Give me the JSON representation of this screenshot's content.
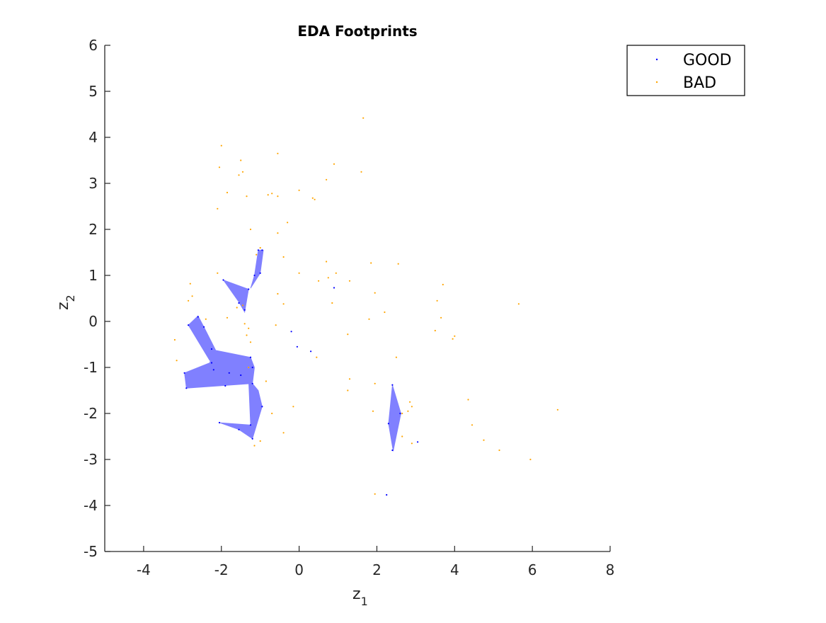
{
  "chart_data": {
    "type": "scatter",
    "title": "EDA Footprints",
    "xlabel": "z",
    "xlabel_sub": "1",
    "ylabel": "z",
    "ylabel_sub": "2",
    "xlim": [
      -5,
      8
    ],
    "ylim": [
      -5,
      6
    ],
    "xticks": [
      -4,
      -2,
      0,
      2,
      4,
      6,
      8
    ],
    "yticks": [
      -5,
      -4,
      -3,
      -2,
      -1,
      0,
      1,
      2,
      3,
      4,
      5,
      6
    ],
    "legend_position": "top-right",
    "grid": false,
    "series": [
      {
        "name": "GOOD",
        "color": "#0000ff",
        "points": [
          [
            -2.6,
            0.1
          ],
          [
            -2.85,
            -0.08
          ],
          [
            -2.45,
            -0.12
          ],
          [
            -2.25,
            -0.6
          ],
          [
            -2.25,
            -0.9
          ],
          [
            -2.2,
            -1.05
          ],
          [
            -1.8,
            -1.12
          ],
          [
            -1.5,
            -1.17
          ],
          [
            -1.2,
            -1.0
          ],
          [
            -1.25,
            -0.78
          ],
          [
            -2.95,
            -1.12
          ],
          [
            -2.9,
            -1.45
          ],
          [
            -1.9,
            -1.4
          ],
          [
            -1.55,
            -2.35
          ],
          [
            -1.25,
            -2.25
          ],
          [
            -1.2,
            -2.55
          ],
          [
            -2.05,
            -2.2
          ],
          [
            -0.95,
            -1.85
          ],
          [
            -1.2,
            -1.35
          ],
          [
            -1.4,
            0.25
          ],
          [
            -1.95,
            0.9
          ],
          [
            -1.55,
            0.4
          ],
          [
            -1.3,
            0.7
          ],
          [
            -1.15,
            1.0
          ],
          [
            -1.0,
            1.05
          ],
          [
            -1.05,
            1.55
          ],
          [
            -0.95,
            1.55
          ],
          [
            -0.2,
            -0.22
          ],
          [
            -0.05,
            -0.55
          ],
          [
            0.3,
            -0.65
          ],
          [
            0.9,
            0.73
          ],
          [
            2.4,
            -1.38
          ],
          [
            2.3,
            -2.22
          ],
          [
            2.4,
            -2.8
          ],
          [
            2.6,
            -2.0
          ],
          [
            3.05,
            -2.62
          ],
          [
            2.25,
            -3.77
          ]
        ]
      },
      {
        "name": "BAD",
        "color": "#ffa500",
        "points": [
          [
            1.65,
            4.42
          ],
          [
            -2.0,
            3.82
          ],
          [
            -0.55,
            3.65
          ],
          [
            -1.5,
            3.5
          ],
          [
            0.9,
            3.42
          ],
          [
            -2.05,
            3.35
          ],
          [
            -1.45,
            3.25
          ],
          [
            -1.55,
            3.18
          ],
          [
            1.6,
            3.25
          ],
          [
            0.7,
            3.08
          ],
          [
            -1.85,
            2.8
          ],
          [
            -0.8,
            2.75
          ],
          [
            -0.7,
            2.78
          ],
          [
            -0.55,
            2.72
          ],
          [
            -1.35,
            2.72
          ],
          [
            0.35,
            2.68
          ],
          [
            0.4,
            2.65
          ],
          [
            0.0,
            2.85
          ],
          [
            -2.1,
            2.45
          ],
          [
            -0.3,
            2.15
          ],
          [
            -1.25,
            2.0
          ],
          [
            -0.55,
            1.92
          ],
          [
            -1.1,
            1.45
          ],
          [
            -1.0,
            1.6
          ],
          [
            -0.4,
            1.4
          ],
          [
            0.7,
            1.3
          ],
          [
            1.85,
            1.27
          ],
          [
            2.55,
            1.25
          ],
          [
            0.0,
            1.05
          ],
          [
            0.95,
            1.05
          ],
          [
            -2.1,
            1.05
          ],
          [
            0.5,
            0.88
          ],
          [
            0.75,
            0.95
          ],
          [
            1.3,
            0.88
          ],
          [
            -2.8,
            0.82
          ],
          [
            -2.75,
            0.55
          ],
          [
            3.7,
            0.8
          ],
          [
            -0.55,
            0.6
          ],
          [
            1.95,
            0.62
          ],
          [
            -2.85,
            0.45
          ],
          [
            3.55,
            0.45
          ],
          [
            0.85,
            0.4
          ],
          [
            -0.4,
            0.38
          ],
          [
            -1.45,
            0.35
          ],
          [
            -1.6,
            0.3
          ],
          [
            2.2,
            0.2
          ],
          [
            5.65,
            0.38
          ],
          [
            -1.85,
            0.08
          ],
          [
            1.8,
            0.05
          ],
          [
            -2.4,
            0.05
          ],
          [
            3.65,
            0.08
          ],
          [
            -1.4,
            -0.05
          ],
          [
            -0.6,
            -0.08
          ],
          [
            -1.3,
            -0.15
          ],
          [
            3.5,
            -0.2
          ],
          [
            1.25,
            -0.28
          ],
          [
            -1.35,
            -0.3
          ],
          [
            4.0,
            -0.32
          ],
          [
            3.95,
            -0.38
          ],
          [
            -3.2,
            -0.4
          ],
          [
            -1.25,
            -0.45
          ],
          [
            0.45,
            -0.78
          ],
          [
            2.5,
            -0.78
          ],
          [
            -3.15,
            -0.85
          ],
          [
            -1.3,
            -1.0
          ],
          [
            1.3,
            -1.25
          ],
          [
            -0.85,
            -1.3
          ],
          [
            1.95,
            -1.35
          ],
          [
            1.25,
            -1.5
          ],
          [
            2.85,
            -1.75
          ],
          [
            4.35,
            -1.7
          ],
          [
            -0.15,
            -1.85
          ],
          [
            2.9,
            -1.85
          ],
          [
            2.8,
            -1.95
          ],
          [
            -0.7,
            -2.0
          ],
          [
            6.65,
            -1.92
          ],
          [
            1.9,
            -1.95
          ],
          [
            2.65,
            -2.0
          ],
          [
            4.45,
            -2.25
          ],
          [
            -0.4,
            -2.42
          ],
          [
            2.65,
            -2.5
          ],
          [
            -1.0,
            -2.6
          ],
          [
            4.75,
            -2.58
          ],
          [
            2.9,
            -2.65
          ],
          [
            5.15,
            -2.8
          ],
          [
            5.95,
            -3.0
          ],
          [
            1.95,
            -3.75
          ],
          [
            -1.15,
            -2.7
          ]
        ]
      }
    ],
    "footprints": [
      {
        "color": "#8080ff",
        "polygon": [
          [
            -2.6,
            0.12
          ],
          [
            -2.85,
            -0.08
          ],
          [
            -2.3,
            -0.85
          ],
          [
            -2.15,
            -0.62
          ],
          [
            -2.45,
            -0.12
          ]
        ]
      },
      {
        "color": "#8080ff",
        "polygon": [
          [
            -2.2,
            -0.62
          ],
          [
            -1.25,
            -0.78
          ],
          [
            -1.15,
            -1.0
          ],
          [
            -1.2,
            -1.35
          ],
          [
            -2.9,
            -1.45
          ],
          [
            -2.95,
            -1.12
          ],
          [
            -2.3,
            -0.9
          ]
        ]
      },
      {
        "color": "#8080ff",
        "polygon": [
          [
            -1.3,
            -1.25
          ],
          [
            -1.05,
            -1.5
          ],
          [
            -0.95,
            -1.85
          ],
          [
            -1.2,
            -2.55
          ],
          [
            -1.55,
            -2.35
          ],
          [
            -2.05,
            -2.2
          ],
          [
            -1.25,
            -2.25
          ]
        ]
      },
      {
        "color": "#8080ff",
        "polygon": [
          [
            -1.95,
            0.9
          ],
          [
            -1.3,
            0.7
          ],
          [
            -1.4,
            0.2
          ],
          [
            -1.55,
            0.42
          ]
        ]
      },
      {
        "color": "#8080ff",
        "polygon": [
          [
            -1.05,
            1.55
          ],
          [
            -0.92,
            1.55
          ],
          [
            -1.0,
            1.05
          ],
          [
            -1.25,
            0.72
          ],
          [
            -1.15,
            1.0
          ]
        ]
      },
      {
        "color": "#8080ff",
        "polygon": [
          [
            2.4,
            -1.38
          ],
          [
            2.62,
            -2.0
          ],
          [
            2.42,
            -2.82
          ],
          [
            2.3,
            -2.22
          ]
        ]
      }
    ]
  }
}
